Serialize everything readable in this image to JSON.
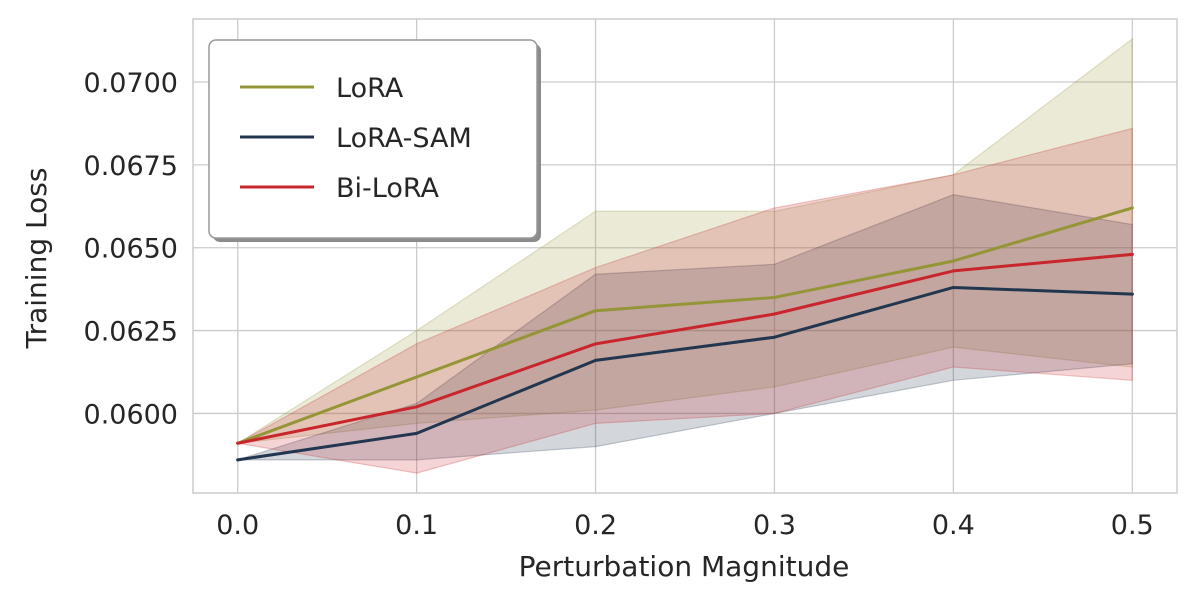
{
  "chart_data": {
    "type": "line",
    "title": "",
    "xlabel": "Perturbation Magnitude",
    "ylabel": "Training Loss",
    "x": [
      0.0,
      0.1,
      0.2,
      0.3,
      0.4,
      0.5
    ],
    "x_tick_labels": [
      "0.0",
      "0.1",
      "0.2",
      "0.3",
      "0.4",
      "0.5"
    ],
    "y_ticks": [
      0.06,
      0.0625,
      0.065,
      0.0675,
      0.07
    ],
    "y_tick_labels": [
      "0.0600",
      "0.0625",
      "0.0650",
      "0.0675",
      "0.0700"
    ],
    "xlim": [
      -0.025,
      0.525
    ],
    "ylim": [
      0.0576,
      0.0719
    ],
    "grid": true,
    "legend_position": "top-left",
    "series": [
      {
        "name": "LoRA",
        "color": "#949537",
        "values": [
          0.0591,
          0.0611,
          0.0631,
          0.0635,
          0.0646,
          0.0662
        ],
        "lower": [
          0.0591,
          0.0597,
          0.0601,
          0.0608,
          0.062,
          0.0614
        ],
        "upper": [
          0.0591,
          0.0625,
          0.0661,
          0.0661,
          0.0672,
          0.0713
        ]
      },
      {
        "name": "LoRA-SAM",
        "color": "#22374f",
        "values": [
          0.0586,
          0.0594,
          0.0616,
          0.0623,
          0.0638,
          0.0636
        ],
        "lower": [
          0.0586,
          0.0586,
          0.059,
          0.06,
          0.061,
          0.0615
        ],
        "upper": [
          0.0586,
          0.0603,
          0.0642,
          0.0645,
          0.0666,
          0.0657
        ]
      },
      {
        "name": "Bi-LoRA",
        "color": "#c8262c",
        "values": [
          0.0591,
          0.0602,
          0.0621,
          0.063,
          0.0643,
          0.0648
        ],
        "lower": [
          0.0591,
          0.0582,
          0.0597,
          0.06,
          0.0614,
          0.061
        ],
        "upper": [
          0.0591,
          0.0621,
          0.0644,
          0.0662,
          0.0672,
          0.0686
        ]
      }
    ]
  }
}
